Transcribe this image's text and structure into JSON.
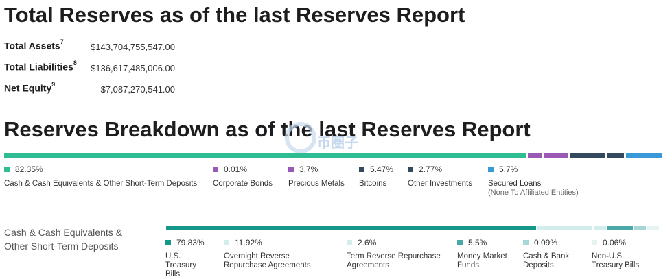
{
  "total_heading": "Total Reserves as of the last Reserves Report",
  "summary": [
    {
      "label": "Total Assets",
      "sup": "7",
      "value": "$143,704,755,547.00"
    },
    {
      "label": "Total Liabilities",
      "sup": "8",
      "value": "$136,617,485,006.00"
    },
    {
      "label": "Net Equity",
      "sup": "9",
      "value": "$7,087,270,541.00"
    }
  ],
  "breakdown_heading": "Reserves Breakdown as of the last Reserves Report",
  "breakdown": [
    {
      "pct": "82.35%",
      "label": "Cash & Cash Equivalents & Other Short-Term Deposits",
      "value": 82.35,
      "color": "#2ebd92"
    },
    {
      "pct": "0.01%",
      "label": "Corporate Bonds",
      "value": 0.01,
      "color": "#9b59b6"
    },
    {
      "pct": "3.7%",
      "label": "Precious Metals",
      "value": 3.7,
      "color": "#9b59b6"
    },
    {
      "pct": "5.47%",
      "label": "Bitcoins",
      "value": 5.47,
      "color": "#34495e"
    },
    {
      "pct": "2.77%",
      "label": "Other Investments",
      "value": 2.77,
      "color": "#34495e"
    },
    {
      "pct": "5.7%",
      "label": "Secured Loans",
      "sublabel": "(None To Affiliated Entities)",
      "value": 5.7,
      "color": "#3a9ad9"
    }
  ],
  "cash_section_title": "Cash & Cash Equivalents & Other Short-Term Deposits",
  "cash_breakdown": [
    {
      "pct": "79.83%",
      "label": "U.S. Treasury Bills",
      "value": 79.83,
      "color": "#15978a"
    },
    {
      "pct": "11.92%",
      "label": "Overnight Reverse Repurchase Agreements",
      "value": 11.92,
      "color": "#d3ecec"
    },
    {
      "pct": "2.6%",
      "label": "Term Reverse Repurchase Agreements",
      "value": 2.6,
      "color": "#d3ecec"
    },
    {
      "pct": "5.5%",
      "label": "Money Market Funds",
      "value": 5.5,
      "color": "#4aa9a8"
    },
    {
      "pct": "0.09%",
      "label": "Cash & Bank Deposits",
      "value": 0.09,
      "color": "#a7d6d6"
    },
    {
      "pct": "0.06%",
      "label": "Non-U.S. Treasury Bills",
      "value": 0.06,
      "color": "#e6f3f3"
    }
  ],
  "watermark_text": "币圈子"
}
